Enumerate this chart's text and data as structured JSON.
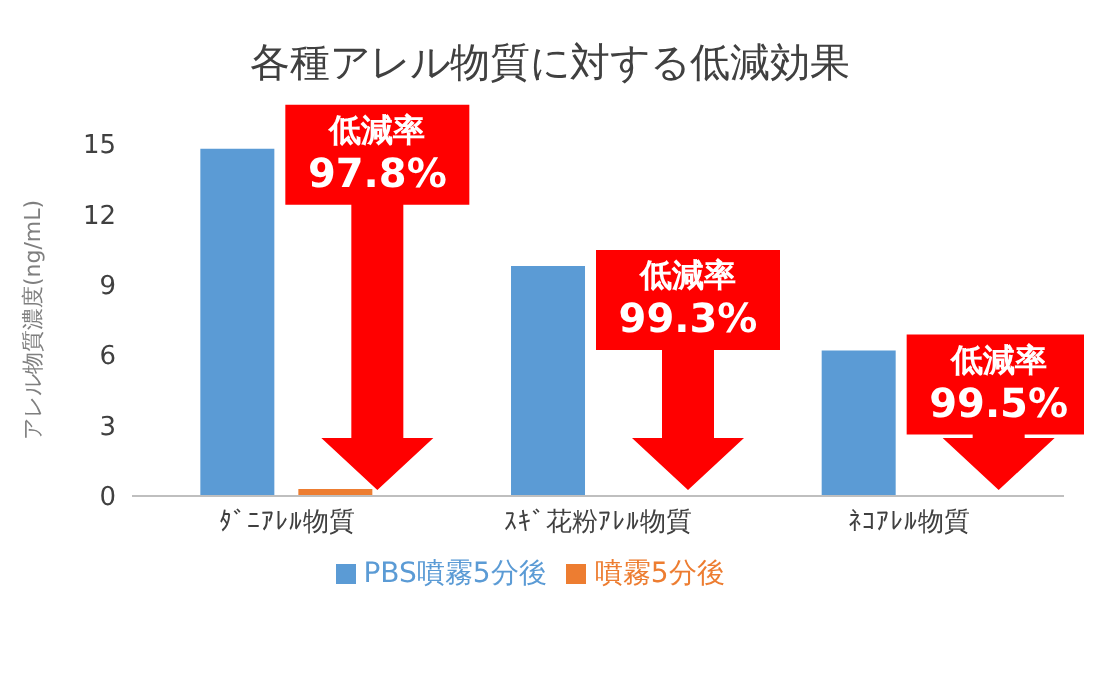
{
  "chart_data": {
    "type": "bar",
    "title": "各種アレル物質に対する低減効果",
    "ylabel": "アレル物質濃度(ng/mL)",
    "categories": [
      "ﾀﾞﾆｱﾚﾙ物質",
      "ｽｷﾞ花粉ｱﾚﾙ物質",
      "ﾈｺｱﾚﾙ物質"
    ],
    "series": [
      {
        "name": "PBS噴霧5分後",
        "color": "#5b9bd5",
        "values": [
          14.8,
          9.8,
          6.2
        ]
      },
      {
        "name": "噴霧5分後",
        "color": "#ed7d31",
        "values": [
          0.3,
          null,
          null
        ]
      }
    ],
    "ylim": [
      0,
      15
    ],
    "yticks": [
      0,
      3,
      6,
      9,
      12,
      15
    ],
    "grid": false,
    "legend": "bottom",
    "annotations": [
      "低減率\n97.8%",
      "低減率\n99.3%",
      "低減率\n99.5%"
    ]
  }
}
